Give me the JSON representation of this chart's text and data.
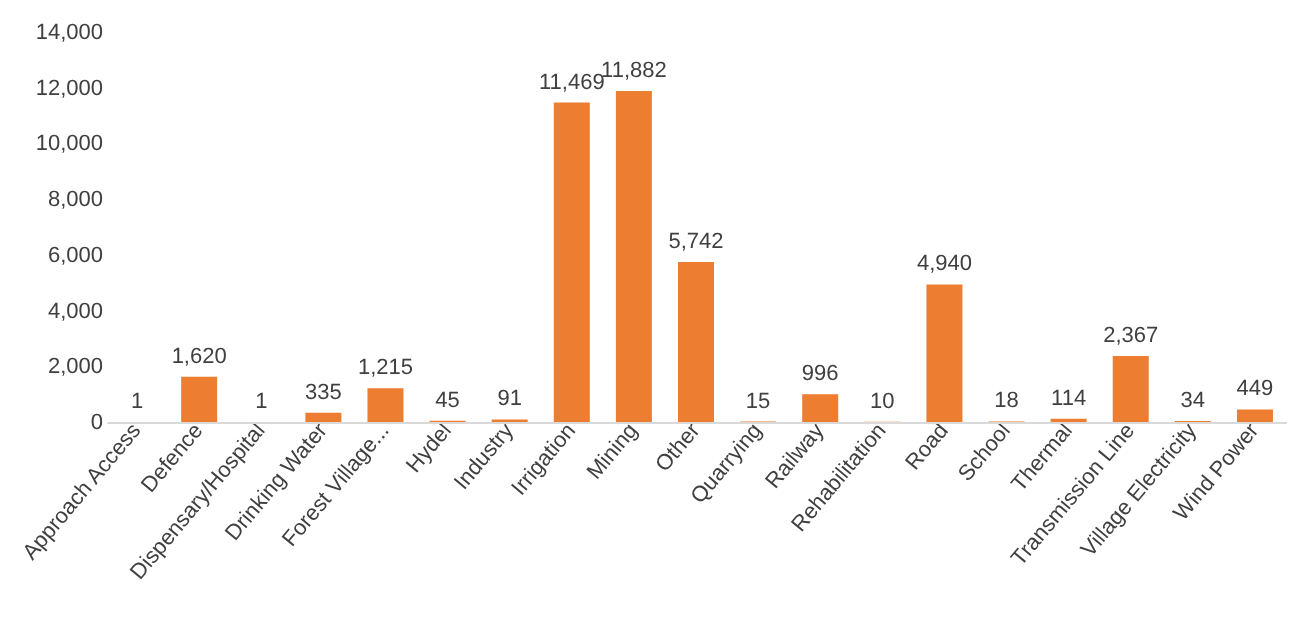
{
  "chart_data": {
    "type": "bar",
    "categories": [
      "Approach Access",
      "Defence",
      "Dispensary/Hospital",
      "Drinking Water",
      "Forest Village...",
      "Hydel",
      "Industry",
      "Irrigation",
      "Mining",
      "Other",
      "Quarrying",
      "Railway",
      "Rehabilitation",
      "Road",
      "School",
      "Thermal",
      "Transmission Line",
      "Village Electricity",
      "Wind Power"
    ],
    "values": [
      1,
      1620,
      1,
      335,
      1215,
      45,
      91,
      11469,
      11882,
      5742,
      15,
      996,
      10,
      4940,
      18,
      114,
      2367,
      34,
      449
    ],
    "value_labels": [
      "1",
      "1,620",
      "1",
      "335",
      "1,215",
      "45",
      "91",
      "11,469",
      "11,882",
      "5,742",
      "15",
      "996",
      "10",
      "4,940",
      "18",
      "114",
      "2,367",
      "34",
      "449"
    ],
    "color": "#ed7d31",
    "ylim": [
      0,
      14000
    ],
    "yticks": [
      0,
      {
        "value": 2000,
        "label": "2,000"
      },
      {
        "value": 4000,
        "label": "4,000"
      },
      {
        "value": 6000,
        "label": "6,000"
      },
      {
        "value": 8000,
        "label": "8,000"
      },
      {
        "value": 10000,
        "label": "10,000"
      },
      {
        "value": 12000,
        "label": "12,000"
      },
      {
        "value": 14000,
        "label": "14,000"
      }
    ],
    "grid": false
  }
}
